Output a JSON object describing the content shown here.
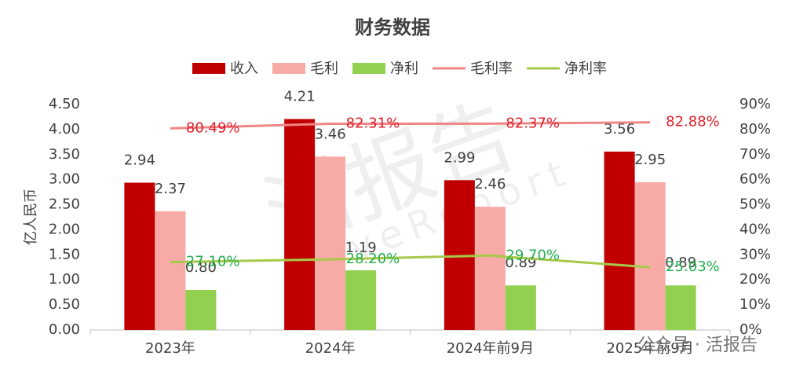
{
  "chart_data": {
    "type": "bar-line",
    "title": "财务数据",
    "y_label": "亿人民币",
    "categories": [
      "2023年",
      "2024年",
      "2024年前9月",
      "2025年前9月"
    ],
    "series": [
      {
        "name": "收入",
        "type": "bar",
        "color": "#c00000",
        "values": [
          2.94,
          4.21,
          2.99,
          3.56
        ],
        "value_labels": [
          "2.94",
          "4.21",
          "2.99",
          "3.56"
        ]
      },
      {
        "name": "毛利",
        "type": "bar",
        "color": "#f8aba6",
        "values": [
          2.37,
          3.46,
          2.46,
          2.95
        ],
        "value_labels": [
          "2.37",
          "3.46",
          "2.46",
          "2.95"
        ]
      },
      {
        "name": "净利",
        "type": "bar",
        "color": "#92d050",
        "values": [
          0.8,
          1.19,
          0.89,
          0.89
        ],
        "value_labels": [
          "0.80",
          "1.19",
          "0.89",
          "0.89"
        ]
      },
      {
        "name": "毛利率",
        "type": "line",
        "axis": "y2",
        "color": "#f08686",
        "label_color": "#e0202a",
        "values": [
          80.49,
          82.31,
          82.37,
          82.88
        ],
        "value_labels": [
          "80.49%",
          "82.31%",
          "82.37%",
          "82.88%"
        ]
      },
      {
        "name": "净利率",
        "type": "line",
        "axis": "y2",
        "color": "#a8c84a",
        "label_color": "#22b04e",
        "values": [
          27.1,
          28.2,
          29.7,
          25.03
        ],
        "value_labels": [
          "27.10%",
          "28.20%",
          "29.70%",
          "25.03%"
        ]
      }
    ],
    "ylim": [
      0,
      4.5
    ],
    "yticks": [
      {
        "value": 0,
        "label": "0.00"
      },
      {
        "value": 0.5,
        "label": "0.50"
      },
      {
        "value": 1,
        "label": "1.00"
      },
      {
        "value": 1.5,
        "label": "1.50"
      },
      {
        "value": 2,
        "label": "2.00"
      },
      {
        "value": 2.5,
        "label": "2.50"
      },
      {
        "value": 3,
        "label": "3.00"
      },
      {
        "value": 3.5,
        "label": "3.50"
      },
      {
        "value": 4,
        "label": "4.00"
      },
      {
        "value": 4.5,
        "label": "4.50"
      }
    ],
    "y2lim": [
      0,
      90
    ],
    "y2ticks": [
      {
        "value": 0,
        "label": "0%"
      },
      {
        "value": 10,
        "label": "10%"
      },
      {
        "value": 20,
        "label": "20%"
      },
      {
        "value": 30,
        "label": "30%"
      },
      {
        "value": 40,
        "label": "40%"
      },
      {
        "value": 50,
        "label": "50%"
      },
      {
        "value": 60,
        "label": "60%"
      },
      {
        "value": 70,
        "label": "70%"
      },
      {
        "value": 80,
        "label": "80%"
      },
      {
        "value": 90,
        "label": "90%"
      }
    ],
    "legend": "top",
    "watermark": [
      "活报告",
      "LiveReport",
      "公众号 · 活报告"
    ]
  }
}
